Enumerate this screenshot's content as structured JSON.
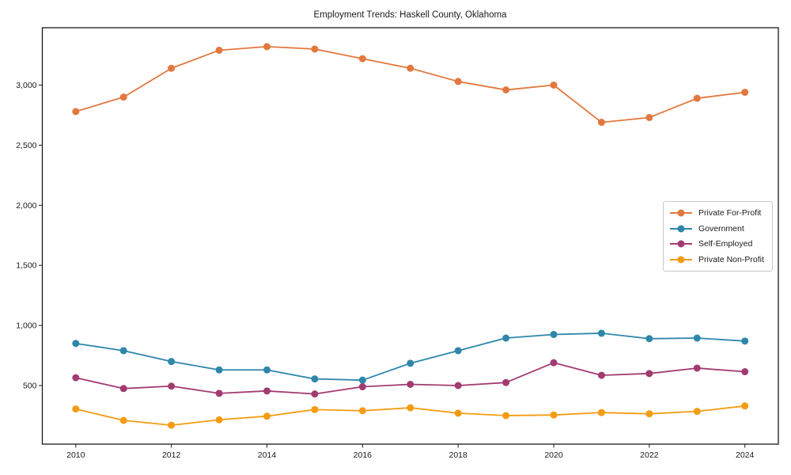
{
  "chart_data": {
    "type": "line",
    "title": "Employment Trends: Haskell County, Oklahoma",
    "xlabel": "",
    "ylabel": "",
    "x": [
      2010,
      2011,
      2012,
      2013,
      2014,
      2015,
      2016,
      2017,
      2018,
      2019,
      2020,
      2021,
      2022,
      2023,
      2024
    ],
    "series": [
      {
        "name": "Private For-Profit",
        "color": "#E2783E",
        "values": [
          2780,
          2900,
          3140,
          3290,
          3320,
          3300,
          3220,
          3140,
          3030,
          2960,
          3000,
          2690,
          2730,
          2890,
          2940
        ]
      },
      {
        "name": "Government",
        "color": "#2E86AB",
        "values": [
          850,
          790,
          700,
          630,
          630,
          555,
          545,
          685,
          790,
          895,
          925,
          935,
          890,
          895,
          870
        ]
      },
      {
        "name": "Self-Employed",
        "color": "#A23B72",
        "values": [
          565,
          475,
          495,
          435,
          455,
          430,
          490,
          510,
          500,
          525,
          690,
          585,
          600,
          645,
          615
        ]
      },
      {
        "name": "Private Non-Profit",
        "color": "#F39C12",
        "values": [
          305,
          210,
          170,
          215,
          245,
          300,
          290,
          315,
          270,
          250,
          255,
          275,
          265,
          285,
          330
        ]
      }
    ],
    "x_ticks": [
      2010,
      2012,
      2014,
      2016,
      2018,
      2020,
      2022,
      2024
    ],
    "x_tick_labels": [
      "2010",
      "2012",
      "2014",
      "2016",
      "2018",
      "2020",
      "2022",
      "2024"
    ],
    "y_ticks": [
      500,
      1000,
      1500,
      2000,
      2500,
      3000
    ],
    "y_tick_labels": [
      "500",
      "1,000",
      "1,500",
      "2,000",
      "2,500",
      "3,000"
    ],
    "xlim": [
      2009.3,
      2024.7
    ],
    "ylim": [
      12.5,
      3477.5
    ],
    "grid": false,
    "legend_position": "center-right"
  }
}
